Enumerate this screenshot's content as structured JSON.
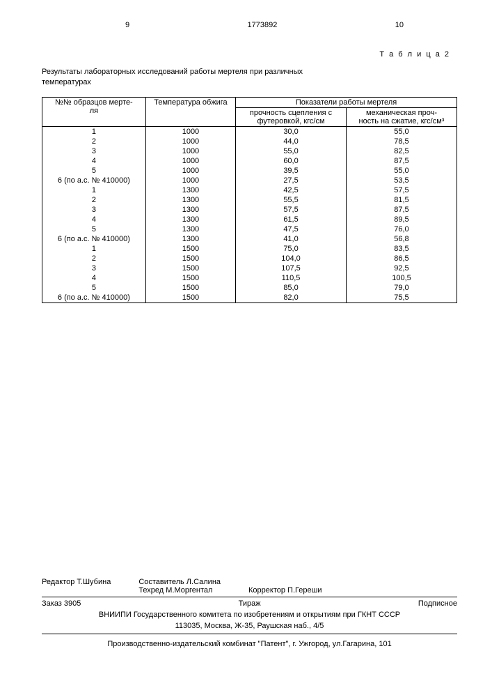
{
  "header": {
    "left_num": "9",
    "doc_num": "1773892",
    "right_num": "10"
  },
  "table_label": "Т а б л и ц а 2",
  "caption": "Результаты лабораторных исследований работы мертеля при различных температурах",
  "table": {
    "head": {
      "c0": "№№ образцов мерте-\nля",
      "c1": "Температура обжига",
      "c23": "Показатели работы мертеля",
      "c2": "прочность сцепления с футеровкой, кгс/см",
      "c3": "механическая проч-\nность на сжатие, кгс/см³"
    },
    "rows": [
      [
        "1",
        "1000",
        "30,0",
        "55,0"
      ],
      [
        "2",
        "1000",
        "44,0",
        "78,5"
      ],
      [
        "3",
        "1000",
        "55,0",
        "82,5"
      ],
      [
        "4",
        "1000",
        "60,0",
        "87,5"
      ],
      [
        "5",
        "1000",
        "39,5",
        "55,0"
      ],
      [
        "6 (по а.с. № 410000)",
        "1000",
        "27,5",
        "53,5"
      ],
      [
        "1",
        "1300",
        "42,5",
        "57,5"
      ],
      [
        "2",
        "1300",
        "55,5",
        "81,5"
      ],
      [
        "3",
        "1300",
        "57,5",
        "87,5"
      ],
      [
        "4",
        "1300",
        "61,5",
        "89,5"
      ],
      [
        "5",
        "1300",
        "47,5",
        "76,0"
      ],
      [
        "6 (по а.с. № 410000)",
        "1300",
        "41,0",
        "56,8"
      ],
      [
        "1",
        "1500",
        "75,0",
        "83,5"
      ],
      [
        "2",
        "1500",
        "104,0",
        "86,5"
      ],
      [
        "3",
        "1500",
        "107,5",
        "92,5"
      ],
      [
        "4",
        "1500",
        "110,5",
        "100,5"
      ],
      [
        "5",
        "1500",
        "85,0",
        "79,0"
      ],
      [
        "6 (по а.с. № 410000)",
        "1500",
        "82,0",
        "75,5"
      ]
    ]
  },
  "footer": {
    "editor_label": "Редактор",
    "editor": "Т.Шубина",
    "compiler_label": "Составитель",
    "compiler": "Л.Салина",
    "techred_label": "Техред",
    "techred": "М.Моргентал",
    "corrector_label": "Корректор",
    "corrector": "П.Гереши",
    "order_label": "Заказ",
    "order": "3905",
    "tirazh": "Тираж",
    "subscr": "Подписное",
    "vniipi_line1": "ВНИИПИ Государственного комитета по изобретениям и открытиям при ГКНТ СССР",
    "vniipi_line2": "113035, Москва, Ж-35, Раушская наб., 4/5",
    "printer": "Производственно-издательский комбинат \"Патент\", г. Ужгород, ул.Гагарина, 101"
  }
}
